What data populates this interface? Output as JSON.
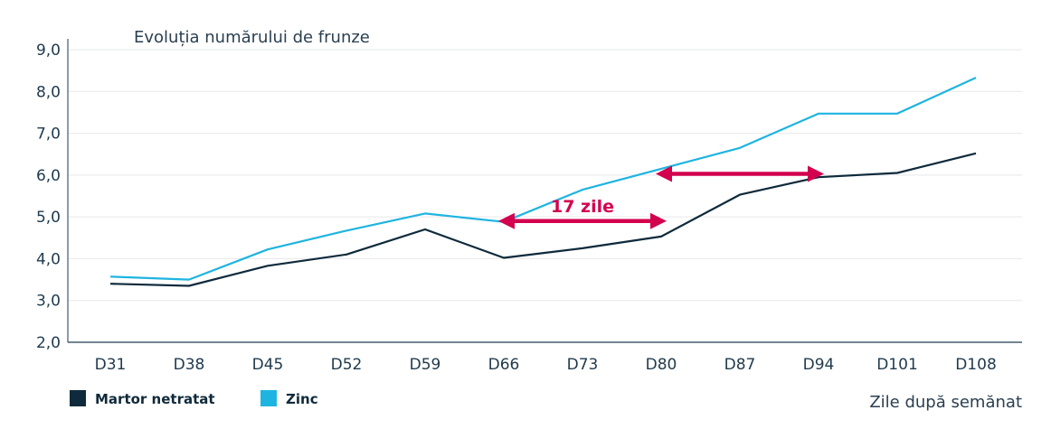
{
  "chart_data": {
    "type": "line",
    "title": "Evoluția numărului de frunze",
    "xlabel": "Zile după semănat",
    "ylabel": "",
    "categories": [
      "D31",
      "D38",
      "D45",
      "D52",
      "D59",
      "D66",
      "D73",
      "D80",
      "D87",
      "D94",
      "D101",
      "D108"
    ],
    "y_ticks": [
      "2,0",
      "3,0",
      "4,0",
      "5,0",
      "6,0",
      "7,0",
      "8,0",
      "9,0"
    ],
    "ylim": [
      2,
      9
    ],
    "grid": true,
    "legend_position": "bottom-left",
    "series": [
      {
        "name": "Martor netratat",
        "color": "#0e2a3b",
        "values": [
          3.4,
          3.35,
          3.83,
          4.1,
          4.7,
          4.02,
          4.25,
          4.53,
          5.53,
          5.95,
          6.05,
          6.52
        ]
      },
      {
        "name": "Zinc",
        "color": "#1eb4e0",
        "values": [
          3.57,
          3.5,
          4.22,
          4.67,
          5.08,
          4.88,
          5.65,
          6.15,
          6.65,
          7.47,
          7.47,
          8.33
        ]
      }
    ],
    "annotations": [
      {
        "text": "17 zile",
        "color": "#d3004e",
        "arrows": [
          {
            "from_x": "D66",
            "to_x": "D80",
            "y": 4.9
          },
          {
            "from_x": "D80",
            "to_x": "D94",
            "y": 6.03
          }
        ]
      }
    ]
  }
}
